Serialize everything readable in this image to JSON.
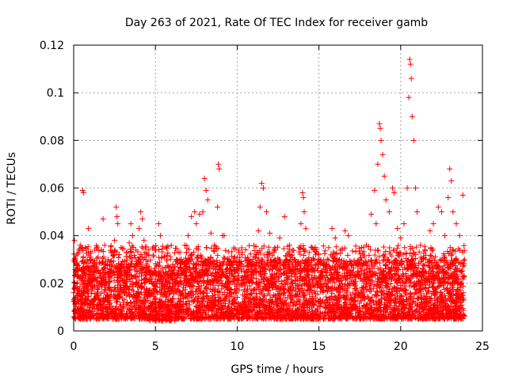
{
  "chart_data": {
    "type": "scatter",
    "title": "Day 263 of 2021, Rate Of TEC Index for receiver gamb",
    "xlabel": "GPS time / hours",
    "ylabel": "ROTI / TECUs",
    "xlim": [
      0,
      25
    ],
    "ylim": [
      0,
      0.12
    ],
    "xticks": [
      0,
      5,
      10,
      15,
      20,
      25
    ],
    "xtick_labels": [
      "0",
      "5",
      "10",
      "15",
      "20",
      "25"
    ],
    "yticks": [
      0,
      0.02,
      0.04,
      0.06,
      0.08,
      0.1,
      0.12
    ],
    "ytick_labels": [
      "0",
      "0.02",
      "0.04",
      "0.06",
      "0.08",
      "0.1",
      "0.12"
    ],
    "grid": true,
    "marker": "+",
    "color": "#ff0000",
    "series": [
      {
        "name": "ROTI",
        "points": [
          [
            0.05,
            0.038
          ],
          [
            0.1,
            0.03
          ],
          [
            0.2,
            0.025
          ],
          [
            0.3,
            0.033
          ],
          [
            0.4,
            0.036
          ],
          [
            0.5,
            0.029
          ],
          [
            0.55,
            0.059
          ],
          [
            0.6,
            0.058
          ],
          [
            0.7,
            0.035
          ],
          [
            0.9,
            0.043
          ],
          [
            1.0,
            0.03
          ],
          [
            1.2,
            0.027
          ],
          [
            1.5,
            0.031
          ],
          [
            1.7,
            0.034
          ],
          [
            1.8,
            0.047
          ],
          [
            1.9,
            0.036
          ],
          [
            2.1,
            0.03
          ],
          [
            2.3,
            0.033
          ],
          [
            2.5,
            0.038
          ],
          [
            2.6,
            0.052
          ],
          [
            2.65,
            0.048
          ],
          [
            2.7,
            0.045
          ],
          [
            2.9,
            0.035
          ],
          [
            3.1,
            0.029
          ],
          [
            3.4,
            0.037
          ],
          [
            3.5,
            0.045
          ],
          [
            3.6,
            0.04
          ],
          [
            3.8,
            0.034
          ],
          [
            4.0,
            0.043
          ],
          [
            4.1,
            0.05
          ],
          [
            4.2,
            0.047
          ],
          [
            4.3,
            0.038
          ],
          [
            4.5,
            0.032
          ],
          [
            4.6,
            0.027
          ],
          [
            4.8,
            0.02
          ],
          [
            5.0,
            0.017
          ],
          [
            5.2,
            0.045
          ],
          [
            5.3,
            0.04
          ],
          [
            5.5,
            0.022
          ],
          [
            5.8,
            0.025
          ],
          [
            6.0,
            0.026
          ],
          [
            6.3,
            0.03
          ],
          [
            6.5,
            0.033
          ],
          [
            6.8,
            0.036
          ],
          [
            7.0,
            0.04
          ],
          [
            7.2,
            0.048
          ],
          [
            7.4,
            0.05
          ],
          [
            7.5,
            0.045
          ],
          [
            7.7,
            0.049
          ],
          [
            7.9,
            0.05
          ],
          [
            8.0,
            0.064
          ],
          [
            8.1,
            0.059
          ],
          [
            8.2,
            0.055
          ],
          [
            8.4,
            0.041
          ],
          [
            8.6,
            0.036
          ],
          [
            8.8,
            0.052
          ],
          [
            8.85,
            0.07
          ],
          [
            8.9,
            0.068
          ],
          [
            9.1,
            0.04
          ],
          [
            9.2,
            0.04
          ],
          [
            9.4,
            0.03
          ],
          [
            9.6,
            0.028
          ],
          [
            9.8,
            0.029
          ],
          [
            10.0,
            0.031
          ],
          [
            10.3,
            0.033
          ],
          [
            10.6,
            0.03
          ],
          [
            10.9,
            0.028
          ],
          [
            11.1,
            0.026
          ],
          [
            11.3,
            0.042
          ],
          [
            11.4,
            0.052
          ],
          [
            11.5,
            0.062
          ],
          [
            11.6,
            0.06
          ],
          [
            11.8,
            0.05
          ],
          [
            12.0,
            0.041
          ],
          [
            12.3,
            0.035
          ],
          [
            12.6,
            0.039
          ],
          [
            12.9,
            0.048
          ],
          [
            13.2,
            0.036
          ],
          [
            13.5,
            0.03
          ],
          [
            13.7,
            0.026
          ],
          [
            13.9,
            0.045
          ],
          [
            14.0,
            0.058
          ],
          [
            14.05,
            0.056
          ],
          [
            14.1,
            0.05
          ],
          [
            14.2,
            0.043
          ],
          [
            14.4,
            0.033
          ],
          [
            14.7,
            0.03
          ],
          [
            15.0,
            0.028
          ],
          [
            15.3,
            0.026
          ],
          [
            15.6,
            0.035
          ],
          [
            15.8,
            0.043
          ],
          [
            16.0,
            0.039
          ],
          [
            16.3,
            0.034
          ],
          [
            16.6,
            0.042
          ],
          [
            16.8,
            0.04
          ],
          [
            17.0,
            0.029
          ],
          [
            17.3,
            0.028
          ],
          [
            17.6,
            0.035
          ],
          [
            17.9,
            0.036
          ],
          [
            18.2,
            0.049
          ],
          [
            18.4,
            0.059
          ],
          [
            18.5,
            0.045
          ],
          [
            18.6,
            0.07
          ],
          [
            18.7,
            0.087
          ],
          [
            18.75,
            0.085
          ],
          [
            18.8,
            0.08
          ],
          [
            18.9,
            0.074
          ],
          [
            19.0,
            0.065
          ],
          [
            19.1,
            0.055
          ],
          [
            19.3,
            0.05
          ],
          [
            19.5,
            0.06
          ],
          [
            19.6,
            0.058
          ],
          [
            19.8,
            0.043
          ],
          [
            20.0,
            0.039
          ],
          [
            20.2,
            0.045
          ],
          [
            20.4,
            0.06
          ],
          [
            20.5,
            0.098
          ],
          [
            20.55,
            0.114
          ],
          [
            20.6,
            0.112
          ],
          [
            20.65,
            0.106
          ],
          [
            20.7,
            0.09
          ],
          [
            20.8,
            0.08
          ],
          [
            20.9,
            0.06
          ],
          [
            21.0,
            0.05
          ],
          [
            21.2,
            0.036
          ],
          [
            21.5,
            0.034
          ],
          [
            21.8,
            0.042
          ],
          [
            22.0,
            0.045
          ],
          [
            22.3,
            0.052
          ],
          [
            22.5,
            0.05
          ],
          [
            22.7,
            0.04
          ],
          [
            22.9,
            0.056
          ],
          [
            23.0,
            0.068
          ],
          [
            23.1,
            0.063
          ],
          [
            23.2,
            0.05
          ],
          [
            23.4,
            0.045
          ],
          [
            23.6,
            0.04
          ],
          [
            23.8,
            0.057
          ],
          [
            23.9,
            0.03
          ]
        ],
        "dense_band": {
          "description": "dense cloud of points across the whole day",
          "x_range": [
            0,
            23.9
          ],
          "y_typical_range": [
            0.005,
            0.03
          ]
        }
      }
    ]
  }
}
